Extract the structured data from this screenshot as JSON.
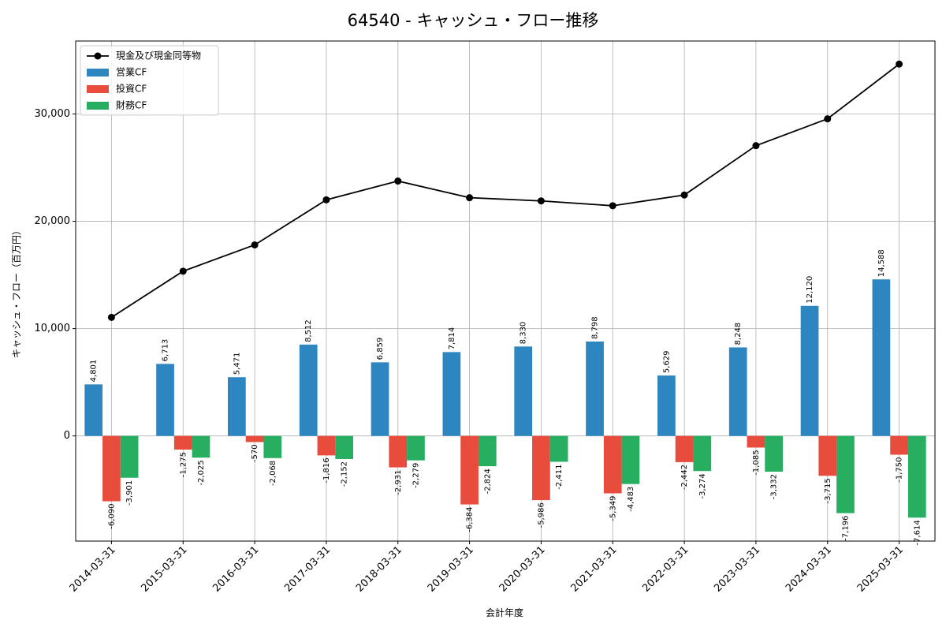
{
  "chart_data": {
    "type": "bar",
    "title": "64540 - キャッシュ・フロー推移",
    "xlabel": "会計年度",
    "ylabel": "キャッシュ・フロー（百万円）",
    "ylim": [
      -9800,
      36800
    ],
    "yticks": [
      0,
      10000,
      20000,
      30000
    ],
    "ytick_labels": [
      "0",
      "10,000",
      "20,000",
      "30,000"
    ],
    "grid": true,
    "legend_position": "top-left",
    "categories": [
      "2014-03-31",
      "2015-03-31",
      "2016-03-31",
      "2017-03-31",
      "2018-03-31",
      "2019-03-31",
      "2020-03-31",
      "2021-03-31",
      "2022-03-31",
      "2023-03-31",
      "2024-03-31",
      "2025-03-31"
    ],
    "series": [
      {
        "name": "営業CF",
        "kind": "bar",
        "color": "#2e86c1",
        "values": [
          4801,
          6713,
          5471,
          8512,
          6859,
          7814,
          8330,
          8798,
          5629,
          8248,
          12120,
          14588
        ],
        "labels": [
          "4,801",
          "6,713",
          "5,471",
          "8,512",
          "6,859",
          "7,814",
          "8,330",
          "8,798",
          "5,629",
          "8,248",
          "12,120",
          "14,588"
        ]
      },
      {
        "name": "投資CF",
        "kind": "bar",
        "color": "#e74c3c",
        "values": [
          -6090,
          -1275,
          -570,
          -1816,
          -2931,
          -6384,
          -5986,
          -5349,
          -2442,
          -1085,
          -3715,
          -1750
        ],
        "labels": [
          "-6,090",
          "-1,275",
          "-570",
          "-1,816",
          "-2,931",
          "-6,384",
          "-5,986",
          "-5,349",
          "-2,442",
          "-1,085",
          "-3,715",
          "-1,750"
        ]
      },
      {
        "name": "財務CF",
        "kind": "bar",
        "color": "#27ae60",
        "values": [
          -3901,
          -2025,
          -2068,
          -2152,
          -2279,
          -2824,
          -2411,
          -4483,
          -3274,
          -3332,
          -7196,
          -7614
        ],
        "labels": [
          "-3,901",
          "-2,025",
          "-2,068",
          "-2,152",
          "-2,279",
          "-2,824",
          "-2,411",
          "-4,483",
          "-3,274",
          "-3,332",
          "-7,196",
          "-7,614"
        ]
      },
      {
        "name": "現金及び現金同等物",
        "kind": "line",
        "color": "#000000",
        "values": [
          11050,
          15350,
          17800,
          22000,
          23750,
          22200,
          21900,
          21450,
          22450,
          27050,
          29550,
          34650
        ]
      }
    ]
  }
}
